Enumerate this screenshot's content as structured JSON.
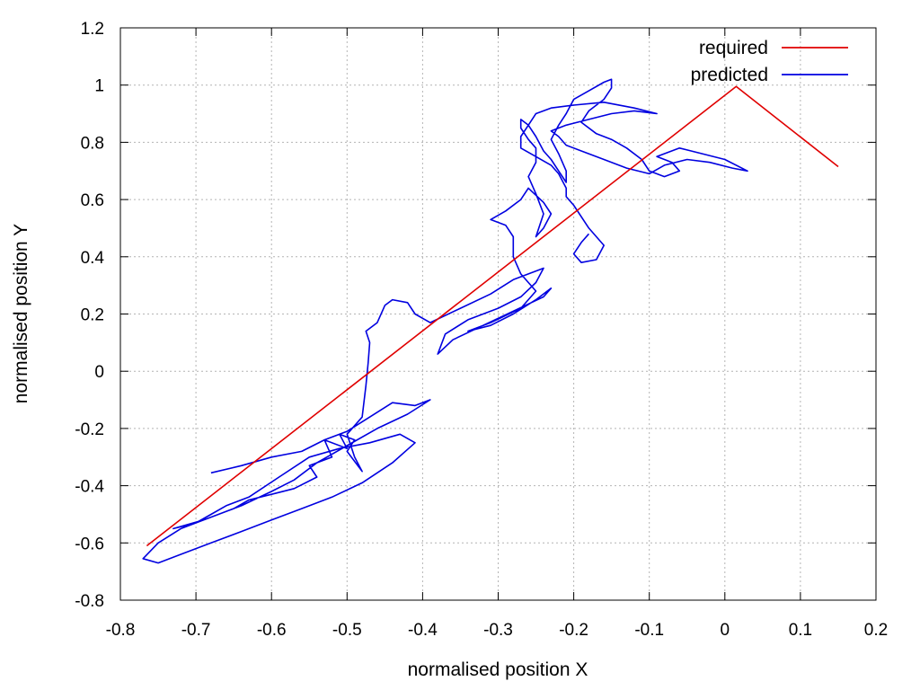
{
  "chart_data": {
    "type": "line",
    "xlabel": "normalised position X",
    "ylabel": "normalised position Y",
    "xlim": [
      -0.8,
      0.2
    ],
    "ylim": [
      -0.8,
      1.2
    ],
    "xticks": [
      "-0.8",
      "-0.7",
      "-0.6",
      "-0.5",
      "-0.4",
      "-0.3",
      "-0.2",
      "-0.1",
      "0",
      "0.1",
      "0.2"
    ],
    "yticks": [
      "-0.8",
      "-0.6",
      "-0.4",
      "-0.2",
      "0",
      "0.2",
      "0.4",
      "0.6",
      "0.8",
      "1",
      "1.2"
    ],
    "grid": true,
    "legend_position": "top-right",
    "series": [
      {
        "name": "required",
        "color": "#e00000",
        "points": [
          [
            -0.765,
            -0.61
          ],
          [
            0.015,
            0.995
          ],
          [
            0.15,
            0.715
          ]
        ]
      },
      {
        "name": "predicted",
        "color": "#0000e0",
        "points": [
          [
            -0.68,
            -0.355
          ],
          [
            -0.64,
            -0.33
          ],
          [
            -0.6,
            -0.3
          ],
          [
            -0.56,
            -0.28
          ],
          [
            -0.53,
            -0.24
          ],
          [
            -0.5,
            -0.21
          ],
          [
            -0.47,
            -0.16
          ],
          [
            -0.44,
            -0.11
          ],
          [
            -0.41,
            -0.12
          ],
          [
            -0.39,
            -0.1
          ],
          [
            -0.42,
            -0.15
          ],
          [
            -0.46,
            -0.2
          ],
          [
            -0.5,
            -0.26
          ],
          [
            -0.54,
            -0.32
          ],
          [
            -0.57,
            -0.38
          ],
          [
            -0.6,
            -0.42
          ],
          [
            -0.64,
            -0.47
          ],
          [
            -0.68,
            -0.51
          ],
          [
            -0.72,
            -0.55
          ],
          [
            -0.75,
            -0.6
          ],
          [
            -0.77,
            -0.655
          ],
          [
            -0.75,
            -0.67
          ],
          [
            -0.72,
            -0.64
          ],
          [
            -0.68,
            -0.6
          ],
          [
            -0.64,
            -0.56
          ],
          [
            -0.6,
            -0.52
          ],
          [
            -0.56,
            -0.48
          ],
          [
            -0.52,
            -0.44
          ],
          [
            -0.48,
            -0.39
          ],
          [
            -0.44,
            -0.32
          ],
          [
            -0.41,
            -0.25
          ],
          [
            -0.43,
            -0.22
          ],
          [
            -0.47,
            -0.25
          ],
          [
            -0.51,
            -0.27
          ],
          [
            -0.55,
            -0.3
          ],
          [
            -0.59,
            -0.37
          ],
          [
            -0.63,
            -0.44
          ],
          [
            -0.66,
            -0.47
          ],
          [
            -0.68,
            -0.5
          ],
          [
            -0.7,
            -0.53
          ],
          [
            -0.73,
            -0.55
          ],
          [
            -0.69,
            -0.52
          ],
          [
            -0.65,
            -0.48
          ],
          [
            -0.63,
            -0.45
          ],
          [
            -0.6,
            -0.43
          ],
          [
            -0.57,
            -0.41
          ],
          [
            -0.54,
            -0.37
          ],
          [
            -0.55,
            -0.33
          ],
          [
            -0.52,
            -0.3
          ],
          [
            -0.53,
            -0.24
          ],
          [
            -0.5,
            -0.27
          ],
          [
            -0.51,
            -0.22
          ],
          [
            -0.49,
            -0.24
          ],
          [
            -0.5,
            -0.28
          ],
          [
            -0.48,
            -0.35
          ],
          [
            -0.49,
            -0.3
          ],
          [
            -0.5,
            -0.22
          ],
          [
            -0.48,
            -0.16
          ],
          [
            -0.475,
            -0.05
          ],
          [
            -0.472,
            0.03
          ],
          [
            -0.47,
            0.1
          ],
          [
            -0.475,
            0.14
          ],
          [
            -0.46,
            0.17
          ],
          [
            -0.45,
            0.23
          ],
          [
            -0.44,
            0.25
          ],
          [
            -0.42,
            0.24
          ],
          [
            -0.41,
            0.2
          ],
          [
            -0.39,
            0.17
          ],
          [
            -0.35,
            0.22
          ],
          [
            -0.31,
            0.27
          ],
          [
            -0.28,
            0.32
          ],
          [
            -0.26,
            0.34
          ],
          [
            -0.24,
            0.36
          ],
          [
            -0.25,
            0.31
          ],
          [
            -0.27,
            0.26
          ],
          [
            -0.3,
            0.22
          ],
          [
            -0.34,
            0.18
          ],
          [
            -0.37,
            0.13
          ],
          [
            -0.38,
            0.06
          ],
          [
            -0.36,
            0.11
          ],
          [
            -0.32,
            0.16
          ],
          [
            -0.28,
            0.21
          ],
          [
            -0.24,
            0.26
          ],
          [
            -0.23,
            0.29
          ],
          [
            -0.25,
            0.25
          ],
          [
            -0.28,
            0.2
          ],
          [
            -0.31,
            0.16
          ],
          [
            -0.34,
            0.14
          ],
          [
            -0.31,
            0.17
          ],
          [
            -0.27,
            0.22
          ],
          [
            -0.25,
            0.28
          ],
          [
            -0.27,
            0.34
          ],
          [
            -0.28,
            0.4
          ],
          [
            -0.28,
            0.47
          ],
          [
            -0.29,
            0.51
          ],
          [
            -0.31,
            0.53
          ],
          [
            -0.29,
            0.56
          ],
          [
            -0.27,
            0.6
          ],
          [
            -0.26,
            0.64
          ],
          [
            -0.24,
            0.59
          ],
          [
            -0.23,
            0.55
          ],
          [
            -0.24,
            0.5
          ],
          [
            -0.25,
            0.47
          ],
          [
            -0.24,
            0.55
          ],
          [
            -0.25,
            0.62
          ],
          [
            -0.26,
            0.68
          ],
          [
            -0.25,
            0.73
          ],
          [
            -0.25,
            0.78
          ],
          [
            -0.26,
            0.81
          ],
          [
            -0.27,
            0.85
          ],
          [
            -0.27,
            0.88
          ],
          [
            -0.26,
            0.86
          ],
          [
            -0.25,
            0.82
          ],
          [
            -0.24,
            0.77
          ],
          [
            -0.23,
            0.74
          ],
          [
            -0.22,
            0.7
          ],
          [
            -0.21,
            0.66
          ],
          [
            -0.21,
            0.7
          ],
          [
            -0.22,
            0.76
          ],
          [
            -0.23,
            0.81
          ],
          [
            -0.22,
            0.86
          ],
          [
            -0.21,
            0.9
          ],
          [
            -0.2,
            0.95
          ],
          [
            -0.18,
            0.98
          ],
          [
            -0.16,
            1.01
          ],
          [
            -0.15,
            1.02
          ],
          [
            -0.15,
            0.99
          ],
          [
            -0.16,
            0.95
          ],
          [
            -0.18,
            0.91
          ],
          [
            -0.19,
            0.87
          ],
          [
            -0.17,
            0.83
          ],
          [
            -0.15,
            0.81
          ],
          [
            -0.13,
            0.78
          ],
          [
            -0.11,
            0.74
          ],
          [
            -0.1,
            0.7
          ],
          [
            -0.08,
            0.68
          ],
          [
            -0.06,
            0.7
          ],
          [
            -0.07,
            0.73
          ],
          [
            -0.09,
            0.75
          ],
          [
            -0.06,
            0.78
          ],
          [
            -0.03,
            0.76
          ],
          [
            0.0,
            0.74
          ],
          [
            0.03,
            0.7
          ],
          [
            0.01,
            0.71
          ],
          [
            -0.02,
            0.73
          ],
          [
            -0.05,
            0.74
          ],
          [
            -0.08,
            0.72
          ],
          [
            -0.1,
            0.69
          ],
          [
            -0.13,
            0.71
          ],
          [
            -0.16,
            0.74
          ],
          [
            -0.19,
            0.77
          ],
          [
            -0.21,
            0.79
          ],
          [
            -0.22,
            0.82
          ],
          [
            -0.23,
            0.84
          ],
          [
            -0.21,
            0.86
          ],
          [
            -0.18,
            0.88
          ],
          [
            -0.15,
            0.9
          ],
          [
            -0.12,
            0.91
          ],
          [
            -0.09,
            0.9
          ],
          [
            -0.12,
            0.92
          ],
          [
            -0.16,
            0.94
          ],
          [
            -0.2,
            0.93
          ],
          [
            -0.23,
            0.92
          ],
          [
            -0.25,
            0.9
          ],
          [
            -0.26,
            0.86
          ],
          [
            -0.27,
            0.82
          ],
          [
            -0.27,
            0.78
          ],
          [
            -0.25,
            0.75
          ],
          [
            -0.23,
            0.72
          ],
          [
            -0.22,
            0.69
          ],
          [
            -0.21,
            0.64
          ],
          [
            -0.21,
            0.61
          ],
          [
            -0.2,
            0.58
          ],
          [
            -0.18,
            0.5
          ],
          [
            -0.17,
            0.47
          ],
          [
            -0.16,
            0.44
          ],
          [
            -0.17,
            0.39
          ],
          [
            -0.19,
            0.38
          ],
          [
            -0.2,
            0.41
          ],
          [
            -0.19,
            0.45
          ],
          [
            -0.18,
            0.48
          ]
        ]
      }
    ]
  }
}
